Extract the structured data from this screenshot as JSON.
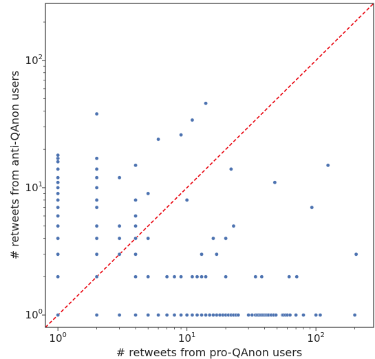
{
  "chart_data": {
    "type": "scatter",
    "title": "",
    "xlabel": "# retweets from pro-QAnon users",
    "ylabel": "# retweets from anti-QAnon users",
    "xscale": "log",
    "yscale": "log",
    "xlim": [
      0.8,
      280
    ],
    "ylim": [
      0.8,
      280
    ],
    "grid": false,
    "x_ticks": [
      {
        "base": "10",
        "exp": "0",
        "value": 1
      },
      {
        "base": "10",
        "exp": "1",
        "value": 10
      },
      {
        "base": "10",
        "exp": "2",
        "value": 100
      }
    ],
    "y_ticks": [
      {
        "base": "10",
        "exp": "0",
        "value": 1
      },
      {
        "base": "10",
        "exp": "1",
        "value": 10
      },
      {
        "base": "10",
        "exp": "2",
        "value": 100
      }
    ],
    "marker_color": "#4c72b0",
    "reference_line": {
      "style": "dashed",
      "color": "#e8000b",
      "equation": "y = x"
    },
    "points": [
      [
        1,
        1
      ],
      [
        1,
        2
      ],
      [
        1,
        3
      ],
      [
        1,
        4
      ],
      [
        1,
        5
      ],
      [
        1,
        6
      ],
      [
        1,
        7
      ],
      [
        1,
        8
      ],
      [
        1,
        9
      ],
      [
        1,
        10
      ],
      [
        1,
        11
      ],
      [
        1,
        12
      ],
      [
        1,
        14
      ],
      [
        1,
        16
      ],
      [
        1,
        17
      ],
      [
        1,
        18
      ],
      [
        2,
        1
      ],
      [
        2,
        2
      ],
      [
        2,
        3
      ],
      [
        2,
        4
      ],
      [
        2,
        5
      ],
      [
        2,
        7
      ],
      [
        2,
        8
      ],
      [
        2,
        10
      ],
      [
        2,
        12
      ],
      [
        2,
        14
      ],
      [
        2,
        17
      ],
      [
        2,
        38
      ],
      [
        3,
        1
      ],
      [
        3,
        3
      ],
      [
        3,
        4
      ],
      [
        3,
        5
      ],
      [
        3,
        12
      ],
      [
        4,
        1
      ],
      [
        4,
        2
      ],
      [
        4,
        3
      ],
      [
        4,
        4
      ],
      [
        4,
        5
      ],
      [
        4,
        6
      ],
      [
        4,
        8
      ],
      [
        4,
        15
      ],
      [
        5,
        1
      ],
      [
        5,
        2
      ],
      [
        5,
        4
      ],
      [
        5,
        9
      ],
      [
        6,
        1
      ],
      [
        6,
        24
      ],
      [
        7,
        1
      ],
      [
        7,
        2
      ],
      [
        8,
        1
      ],
      [
        8,
        2
      ],
      [
        9,
        1
      ],
      [
        9,
        2
      ],
      [
        9,
        26
      ],
      [
        10,
        1
      ],
      [
        10,
        8
      ],
      [
        11,
        1
      ],
      [
        11,
        2
      ],
      [
        11,
        34
      ],
      [
        12,
        1
      ],
      [
        12,
        2
      ],
      [
        13,
        1
      ],
      [
        13,
        2
      ],
      [
        13,
        3
      ],
      [
        14,
        1
      ],
      [
        14,
        2
      ],
      [
        14,
        46
      ],
      [
        15,
        1
      ],
      [
        16,
        1
      ],
      [
        16,
        4
      ],
      [
        17,
        1
      ],
      [
        17,
        3
      ],
      [
        18,
        1
      ],
      [
        19,
        1
      ],
      [
        20,
        1
      ],
      [
        20,
        2
      ],
      [
        20,
        4
      ],
      [
        21,
        1
      ],
      [
        22,
        1
      ],
      [
        22,
        14
      ],
      [
        23,
        1
      ],
      [
        23,
        5
      ],
      [
        24,
        1
      ],
      [
        25,
        1
      ],
      [
        30,
        1
      ],
      [
        32,
        1
      ],
      [
        34,
        1
      ],
      [
        34,
        2
      ],
      [
        35,
        1
      ],
      [
        36,
        1
      ],
      [
        37,
        1
      ],
      [
        38,
        1
      ],
      [
        38,
        2
      ],
      [
        39,
        1
      ],
      [
        40,
        1
      ],
      [
        41,
        1
      ],
      [
        42,
        1
      ],
      [
        43,
        1
      ],
      [
        45,
        1
      ],
      [
        47,
        1
      ],
      [
        48,
        11
      ],
      [
        49,
        1
      ],
      [
        55,
        1
      ],
      [
        56,
        1
      ],
      [
        58,
        1
      ],
      [
        60,
        1
      ],
      [
        62,
        2
      ],
      [
        63,
        1
      ],
      [
        70,
        1
      ],
      [
        71,
        2
      ],
      [
        80,
        1
      ],
      [
        93,
        7
      ],
      [
        100,
        1
      ],
      [
        108,
        1
      ],
      [
        124,
        15
      ],
      [
        200,
        1
      ],
      [
        205,
        3
      ]
    ]
  }
}
